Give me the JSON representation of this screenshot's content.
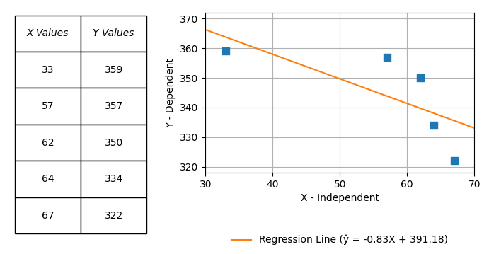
{
  "chart_data": {
    "type": "scatter",
    "x_label": "X - Independent",
    "y_label": "Y - Dependent",
    "table_headers": [
      "X Values",
      "Y Values"
    ],
    "series": [
      {
        "type": "scatter",
        "marker": "square",
        "x": [
          33,
          57,
          62,
          64,
          67
        ],
        "values": [
          359,
          357,
          350,
          334,
          322
        ]
      },
      {
        "type": "line",
        "name": "Regression Line (ŷ = -0.83X + 391.18)",
        "x": [
          30,
          70
        ],
        "values": [
          366.28,
          333.08
        ]
      }
    ],
    "xlim": [
      30,
      70
    ],
    "ylim": [
      318,
      372
    ],
    "xticks": [
      30,
      40,
      50,
      60,
      70
    ],
    "yticks": [
      320,
      330,
      340,
      350,
      360,
      370
    ],
    "grid": true,
    "legend": "lower center"
  }
}
